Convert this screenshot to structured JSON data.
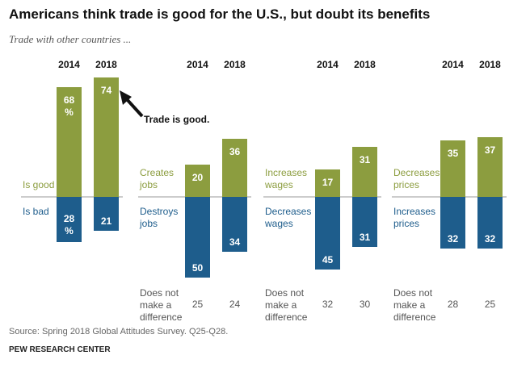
{
  "title": "Americans think trade is good for the U.S., but doubt its benefits",
  "subtitle": "Trade with other countries ...",
  "source": "Source: Spring 2018 Global Attitudes Survey. Q25-Q28.",
  "credit": "PEW RESEARCH CENTER",
  "chart_data": [
    {
      "type": "bar",
      "categories": [
        "2014",
        "2018"
      ],
      "series": [
        {
          "name": "Is good",
          "color": "#8c9d3f",
          "values": [
            68,
            74
          ],
          "value_labels": [
            "68 %",
            "74"
          ]
        },
        {
          "name": "Is bad",
          "color": "#1e5d8c",
          "values": [
            28,
            21
          ],
          "value_labels": [
            "28 %",
            "21"
          ]
        }
      ],
      "annotation": "Trade is good."
    },
    {
      "type": "bar",
      "categories": [
        "2014",
        "2018"
      ],
      "series": [
        {
          "name": "Creates jobs",
          "color": "#8c9d3f",
          "values": [
            20,
            36
          ]
        },
        {
          "name": "Destroys jobs",
          "color": "#1e5d8c",
          "values": [
            50,
            34
          ]
        }
      ],
      "neutral_label": "Does not make a difference",
      "neutral_values": [
        25,
        24
      ]
    },
    {
      "type": "bar",
      "categories": [
        "2014",
        "2018"
      ],
      "series": [
        {
          "name": "Increases wages",
          "color": "#8c9d3f",
          "values": [
            17,
            31
          ]
        },
        {
          "name": "Decreases wages",
          "color": "#1e5d8c",
          "values": [
            45,
            31
          ]
        }
      ],
      "neutral_label": "Does not make a difference",
      "neutral_values": [
        32,
        30
      ]
    },
    {
      "type": "bar",
      "categories": [
        "2014",
        "2018"
      ],
      "series": [
        {
          "name": "Decreases prices",
          "color": "#8c9d3f",
          "values": [
            35,
            37
          ]
        },
        {
          "name": "Increases prices",
          "color": "#1e5d8c",
          "values": [
            32,
            32
          ]
        }
      ],
      "neutral_label": "Does not make a difference",
      "neutral_values": [
        28,
        25
      ]
    }
  ]
}
